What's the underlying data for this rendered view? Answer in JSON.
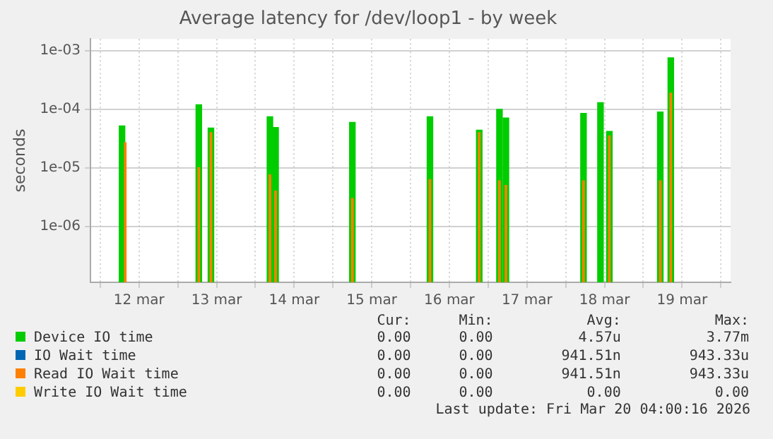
{
  "chart_data": {
    "type": "line",
    "title": "Average latency for /dev/loop1 - by week",
    "ylabel": "seconds",
    "log": "y",
    "grid": true,
    "legend": "bottom",
    "xlim": [
      "2026-03-11T21:00",
      "2026-03-20T03:00"
    ],
    "xticks": [
      {
        "value": "2026-03-12T00:00",
        "label": null
      },
      {
        "value": "2026-03-12T12:00",
        "label": "12 mar"
      },
      {
        "value": "2026-03-13T00:00",
        "label": null
      },
      {
        "value": "2026-03-13T12:00",
        "label": "13 mar"
      },
      {
        "value": "2026-03-14T00:00",
        "label": null
      },
      {
        "value": "2026-03-14T12:00",
        "label": "14 mar"
      },
      {
        "value": "2026-03-15T00:00",
        "label": null
      },
      {
        "value": "2026-03-15T12:00",
        "label": "15 mar"
      },
      {
        "value": "2026-03-16T00:00",
        "label": null
      },
      {
        "value": "2026-03-16T12:00",
        "label": "16 mar"
      },
      {
        "value": "2026-03-17T00:00",
        "label": null
      },
      {
        "value": "2026-03-17T12:00",
        "label": "17 mar"
      },
      {
        "value": "2026-03-18T00:00",
        "label": null
      },
      {
        "value": "2026-03-18T12:00",
        "label": "18 mar"
      },
      {
        "value": "2026-03-19T00:00",
        "label": null
      },
      {
        "value": "2026-03-19T12:00",
        "label": "19 mar"
      },
      {
        "value": "2026-03-20T00:00",
        "label": null
      }
    ],
    "ylim": [
      1.1e-07,
      0.0016
    ],
    "yticks": [
      {
        "value": 1e-06,
        "label": "1e-06"
      },
      {
        "value": 1e-05,
        "label": "1e-05"
      },
      {
        "value": 0.0001,
        "label": "1e-04"
      },
      {
        "value": 0.001,
        "label": "1e-03"
      }
    ],
    "series": [
      {
        "name": "Device IO time",
        "color": "#00cc00",
        "type": "bar",
        "x": [
          "2026-03-12T06:45",
          "2026-03-13T06:30",
          "2026-03-13T10:15",
          "2026-03-14T04:30",
          "2026-03-14T06:15",
          "2026-03-15T06:00",
          "2026-03-16T06:00",
          "2026-03-16T21:15",
          "2026-03-17T03:30",
          "2026-03-17T05:30",
          "2026-03-18T05:30",
          "2026-03-18T10:45",
          "2026-03-18T13:30",
          "2026-03-19T05:15",
          "2026-03-19T08:30"
        ],
        "values": [
          5.2e-05,
          0.00012,
          4.8e-05,
          7.5e-05,
          4.9e-05,
          6e-05,
          7.5e-05,
          4.4e-05,
          0.0001,
          7.1e-05,
          8.5e-05,
          0.00013,
          4.2e-05,
          9e-05,
          0.00076
        ]
      },
      {
        "name": "IO Wait time",
        "color": "#0066b3",
        "type": "bar"
      },
      {
        "name": "Read IO Wait time",
        "color": "#ff8000",
        "type": "bar",
        "x": [
          "2026-03-12T07:45",
          "2026-03-13T06:30",
          "2026-03-13T10:15",
          "2026-03-14T04:30",
          "2026-03-14T06:15",
          "2026-03-15T06:00",
          "2026-03-16T06:00",
          "2026-03-16T21:15",
          "2026-03-17T03:30",
          "2026-03-17T05:30",
          "2026-03-18T05:30",
          "2026-03-18T13:30",
          "2026-03-19T05:15",
          "2026-03-19T08:30"
        ],
        "values": [
          2.7e-05,
          1e-05,
          4e-05,
          7.6e-06,
          4e-06,
          3e-06,
          6.3e-06,
          4e-05,
          6e-06,
          5e-06,
          6e-06,
          3.5e-05,
          6e-06,
          0.00019
        ]
      },
      {
        "name": "Write IO Wait time",
        "color": "#ffcc00",
        "type": "bar"
      }
    ],
    "annotations": [
      "Cur:",
      "Min:",
      "Avg:",
      "Max:",
      "0.00",
      "0.00",
      "4.57u",
      "3.77m",
      "0.00",
      "0.00",
      "941.51n",
      "943.33u",
      "0.00",
      "0.00",
      "941.51n",
      "943.33u",
      "0.00",
      "0.00",
      "0.00",
      "0.00",
      "Last update: Fri Mar 20 04:00:16 2026"
    ]
  }
}
